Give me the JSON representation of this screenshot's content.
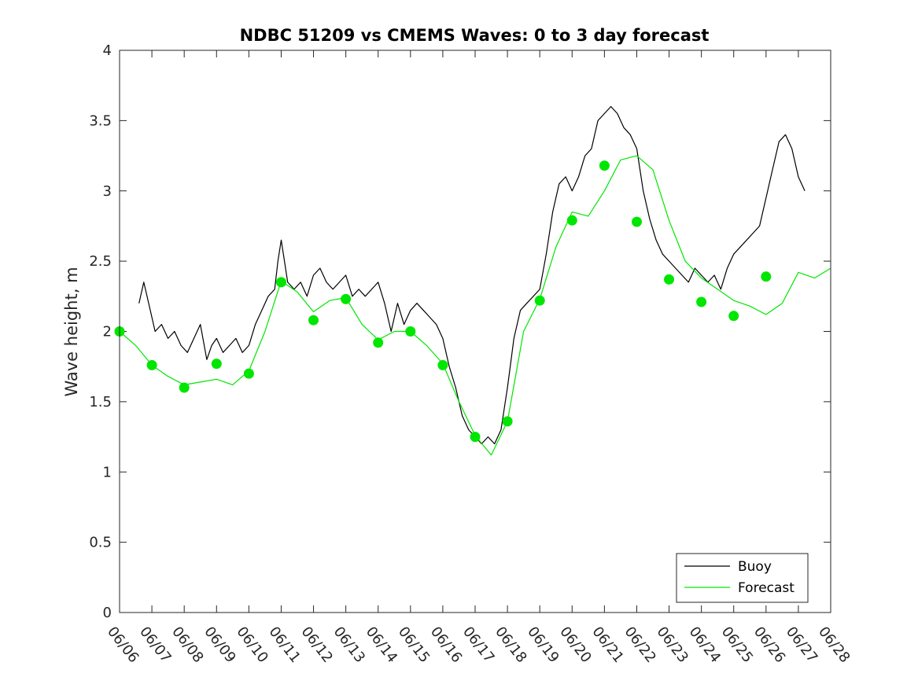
{
  "chart_data": {
    "type": "line",
    "title": "NDBC 51209 vs CMEMS Waves: 0 to 3 day forecast",
    "xlabel": "",
    "ylabel": "Wave height, m",
    "ylim": [
      0,
      4
    ],
    "yticks": [
      0,
      0.5,
      1,
      1.5,
      2,
      2.5,
      3,
      3.5,
      4
    ],
    "ytick_labels": [
      "0",
      "0.5",
      "1",
      "1.5",
      "2",
      "2.5",
      "3",
      "3.5",
      "4"
    ],
    "xlim": [
      0,
      22
    ],
    "xticks": [
      0,
      1,
      2,
      3,
      4,
      5,
      6,
      7,
      8,
      9,
      10,
      11,
      12,
      13,
      14,
      15,
      16,
      17,
      18,
      19,
      20,
      21,
      22
    ],
    "xtick_labels": [
      "06/06",
      "06/07",
      "06/08",
      "06/09",
      "06/10",
      "06/11",
      "06/12",
      "06/13",
      "06/14",
      "06/15",
      "06/16",
      "06/17",
      "06/18",
      "06/19",
      "06/20",
      "06/21",
      "06/22",
      "06/23",
      "06/24",
      "06/25",
      "06/26",
      "06/27",
      "06/28"
    ],
    "grid": false,
    "legend_position": "bottom-right",
    "colors": {
      "buoy": "#000000",
      "forecast": "#00e600"
    },
    "series": [
      {
        "name": "Buoy",
        "color": "#000000",
        "x": [
          0.6,
          0.75,
          0.9,
          1.1,
          1.3,
          1.5,
          1.7,
          1.9,
          2.1,
          2.3,
          2.5,
          2.7,
          2.85,
          3.0,
          3.2,
          3.4,
          3.6,
          3.8,
          4.0,
          4.2,
          4.4,
          4.6,
          4.8,
          4.9,
          5.0,
          5.2,
          5.4,
          5.6,
          5.8,
          6.0,
          6.2,
          6.4,
          6.6,
          6.8,
          7.0,
          7.2,
          7.4,
          7.6,
          7.8,
          8.0,
          8.2,
          8.4,
          8.6,
          8.8,
          9.0,
          9.2,
          9.4,
          9.6,
          9.8,
          10.0,
          10.2,
          10.4,
          10.6,
          10.8,
          11.0,
          11.2,
          11.4,
          11.6,
          11.8,
          12.0,
          12.2,
          12.4,
          12.6,
          12.8,
          13.0,
          13.2,
          13.4,
          13.6,
          13.8,
          14.0,
          14.2,
          14.4,
          14.6,
          14.8,
          15.0,
          15.2,
          15.4,
          15.6,
          15.8,
          16.0,
          16.2,
          16.4,
          16.6,
          16.8,
          17.0,
          17.2,
          17.4,
          17.6,
          17.8,
          18.0,
          18.2,
          18.4,
          18.6,
          18.8,
          19.0,
          19.2,
          19.4,
          19.6,
          19.8,
          20.0,
          20.2,
          20.4,
          20.6,
          20.8,
          21.0,
          21.2
        ],
        "y": [
          2.2,
          2.35,
          2.2,
          2.0,
          2.05,
          1.95,
          2.0,
          1.9,
          1.85,
          1.95,
          2.05,
          1.8,
          1.9,
          1.95,
          1.85,
          1.9,
          1.95,
          1.85,
          1.9,
          2.05,
          2.15,
          2.25,
          2.3,
          2.5,
          2.65,
          2.35,
          2.3,
          2.35,
          2.25,
          2.4,
          2.45,
          2.35,
          2.3,
          2.35,
          2.4,
          2.25,
          2.3,
          2.25,
          2.3,
          2.35,
          2.2,
          2.0,
          2.2,
          2.05,
          2.15,
          2.2,
          2.15,
          2.1,
          2.05,
          1.95,
          1.75,
          1.6,
          1.4,
          1.3,
          1.25,
          1.2,
          1.25,
          1.2,
          1.3,
          1.6,
          1.95,
          2.15,
          2.2,
          2.25,
          2.3,
          2.55,
          2.85,
          3.05,
          3.1,
          3.0,
          3.1,
          3.25,
          3.3,
          3.5,
          3.55,
          3.6,
          3.55,
          3.45,
          3.4,
          3.3,
          3.0,
          2.8,
          2.65,
          2.55,
          2.5,
          2.45,
          2.4,
          2.35,
          2.45,
          2.4,
          2.35,
          2.4,
          2.3,
          2.45,
          2.55,
          2.6,
          2.65,
          2.7,
          2.75,
          2.95,
          3.15,
          3.35,
          3.4,
          3.3,
          3.1,
          3.0
        ]
      },
      {
        "name": "Forecast",
        "color": "#00e600",
        "x": [
          0,
          0.5,
          1.0,
          1.5,
          2.0,
          2.5,
          3.0,
          3.5,
          4.0,
          4.5,
          5.0,
          5.5,
          6.0,
          6.5,
          7.0,
          7.5,
          8.0,
          8.5,
          9.0,
          9.5,
          10.0,
          10.5,
          11.0,
          11.5,
          12.0,
          12.5,
          13.0,
          13.5,
          14.0,
          14.5,
          15.0,
          15.5,
          16.0,
          16.5,
          17.0,
          17.5,
          18.0,
          18.5,
          19.0,
          19.5,
          20.0,
          20.5,
          21.0,
          21.5,
          22.0
        ],
        "y": [
          2.0,
          1.9,
          1.76,
          1.68,
          1.62,
          1.64,
          1.66,
          1.62,
          1.72,
          2.0,
          2.36,
          2.28,
          2.14,
          2.22,
          2.24,
          2.05,
          1.94,
          2.0,
          2.0,
          1.9,
          1.77,
          1.5,
          1.26,
          1.12,
          1.36,
          2.0,
          2.23,
          2.6,
          2.85,
          2.82,
          3.0,
          3.22,
          3.25,
          3.15,
          2.79,
          2.5,
          2.38,
          2.3,
          2.22,
          2.18,
          2.12,
          2.2,
          2.42,
          2.38,
          2.45
        ]
      }
    ],
    "forecast_markers": {
      "x": [
        0,
        1,
        2,
        3,
        4,
        5,
        6,
        7,
        8,
        9,
        10,
        11,
        12,
        13,
        14,
        15,
        16,
        17,
        18,
        19,
        20
      ],
      "y": [
        2.0,
        1.76,
        1.6,
        1.77,
        1.7,
        2.35,
        2.08,
        2.23,
        1.92,
        2.0,
        1.76,
        1.25,
        1.36,
        2.22,
        2.79,
        3.18,
        2.78,
        2.37,
        2.21,
        2.11,
        2.39
      ]
    }
  }
}
